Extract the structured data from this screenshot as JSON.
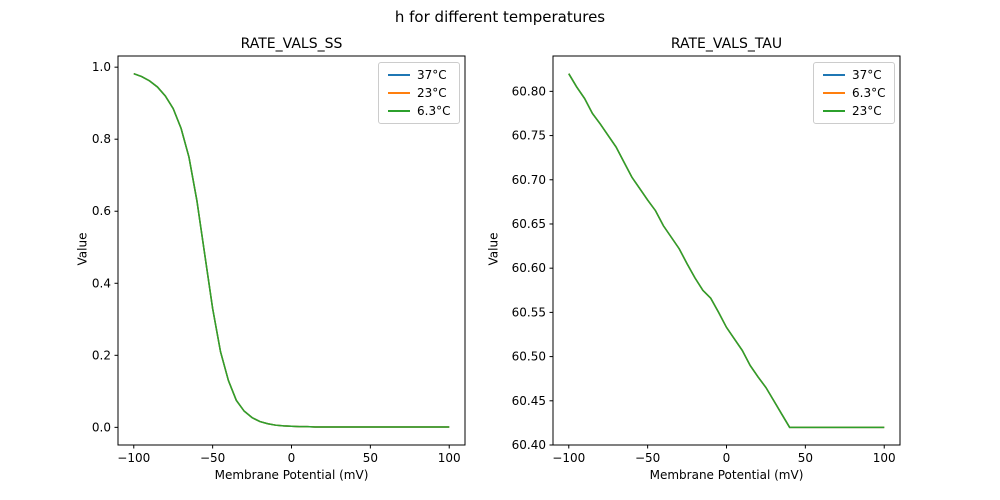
{
  "figure": {
    "title": "h for different temperatures",
    "background": "#ffffff"
  },
  "chart_data": [
    {
      "type": "line",
      "title": "RATE_VALS_SS",
      "xlabel": "Membrane Potential (mV)",
      "ylabel": "Value",
      "xlim": [
        -110,
        110
      ],
      "ylim": [
        -0.049,
        1.031
      ],
      "xticks": [
        -100,
        -50,
        0,
        50,
        100
      ],
      "xtick_labels": [
        "−100",
        "−50",
        "0",
        "50",
        "100"
      ],
      "yticks": [
        0.0,
        0.2,
        0.4,
        0.6,
        0.8,
        1.0
      ],
      "ytick_labels": [
        "0.0",
        "0.2",
        "0.4",
        "0.6",
        "0.8",
        "1.0"
      ],
      "grid": false,
      "legend_position": "upper right",
      "series_overlap": true,
      "x": [
        -100,
        -95,
        -90,
        -85,
        -80,
        -75,
        -70,
        -65,
        -60,
        -55,
        -50,
        -45,
        -40,
        -35,
        -30,
        -25,
        -20,
        -15,
        -10,
        -5,
        0,
        5,
        10,
        15,
        20,
        25,
        30,
        35,
        40,
        45,
        50,
        55,
        60,
        65,
        70,
        75,
        80,
        85,
        90,
        95,
        100
      ],
      "series": [
        {
          "name": "37°C",
          "color": "#1f77b4",
          "values": [
            0.982,
            0.974,
            0.962,
            0.945,
            0.92,
            0.885,
            0.83,
            0.75,
            0.63,
            0.48,
            0.33,
            0.21,
            0.13,
            0.075,
            0.045,
            0.027,
            0.016,
            0.01,
            0.006,
            0.004,
            0.003,
            0.002,
            0.002,
            0.001,
            0.001,
            0.001,
            0.001,
            0.001,
            0.001,
            0.001,
            0.001,
            0.001,
            0.001,
            0.001,
            0.001,
            0.001,
            0.001,
            0.001,
            0.001,
            0.001,
            0.001
          ]
        },
        {
          "name": "23°C",
          "color": "#ff7f0e",
          "values": [
            0.982,
            0.974,
            0.962,
            0.945,
            0.92,
            0.885,
            0.83,
            0.75,
            0.63,
            0.48,
            0.33,
            0.21,
            0.13,
            0.075,
            0.045,
            0.027,
            0.016,
            0.01,
            0.006,
            0.004,
            0.003,
            0.002,
            0.002,
            0.001,
            0.001,
            0.001,
            0.001,
            0.001,
            0.001,
            0.001,
            0.001,
            0.001,
            0.001,
            0.001,
            0.001,
            0.001,
            0.001,
            0.001,
            0.001,
            0.001,
            0.001
          ]
        },
        {
          "name": "6.3°C",
          "color": "#2ca02c",
          "values": [
            0.982,
            0.974,
            0.962,
            0.945,
            0.92,
            0.885,
            0.83,
            0.75,
            0.63,
            0.48,
            0.33,
            0.21,
            0.13,
            0.075,
            0.045,
            0.027,
            0.016,
            0.01,
            0.006,
            0.004,
            0.003,
            0.002,
            0.002,
            0.001,
            0.001,
            0.001,
            0.001,
            0.001,
            0.001,
            0.001,
            0.001,
            0.001,
            0.001,
            0.001,
            0.001,
            0.001,
            0.001,
            0.001,
            0.001,
            0.001,
            0.001
          ]
        }
      ]
    },
    {
      "type": "line",
      "title": "RATE_VALS_TAU",
      "xlabel": "Membrane Potential (mV)",
      "ylabel": "Value",
      "xlim": [
        -110,
        110
      ],
      "ylim": [
        60.4,
        60.84
      ],
      "xticks": [
        -100,
        -50,
        0,
        50,
        100
      ],
      "xtick_labels": [
        "−100",
        "−50",
        "0",
        "50",
        "100"
      ],
      "yticks": [
        60.4,
        60.45,
        60.5,
        60.55,
        60.6,
        60.65,
        60.7,
        60.75,
        60.8
      ],
      "ytick_labels": [
        "60.40",
        "60.45",
        "60.50",
        "60.55",
        "60.60",
        "60.65",
        "60.70",
        "60.75",
        "60.80"
      ],
      "grid": false,
      "legend_position": "upper right",
      "series_overlap": true,
      "x": [
        -100,
        -95,
        -90,
        -85,
        -80,
        -75,
        -70,
        -65,
        -60,
        -55,
        -50,
        -45,
        -40,
        -35,
        -30,
        -25,
        -20,
        -15,
        -10,
        -5,
        0,
        5,
        10,
        15,
        20,
        25,
        30,
        35,
        40,
        45,
        50,
        55,
        60,
        65,
        70,
        75,
        80,
        85,
        90,
        95,
        100
      ],
      "series": [
        {
          "name": "37°C",
          "color": "#1f77b4",
          "values": [
            60.82,
            60.805,
            60.792,
            60.775,
            60.763,
            60.75,
            60.737,
            60.72,
            60.703,
            60.69,
            60.677,
            60.665,
            60.648,
            60.635,
            60.622,
            60.605,
            60.589,
            60.575,
            60.566,
            60.55,
            60.533,
            60.52,
            60.507,
            60.49,
            60.477,
            60.465,
            60.45,
            60.435,
            60.42,
            60.42,
            60.42,
            60.42,
            60.42,
            60.42,
            60.42,
            60.42,
            60.42,
            60.42,
            60.42,
            60.42,
            60.42
          ]
        },
        {
          "name": "6.3°C",
          "color": "#ff7f0e",
          "values": [
            60.82,
            60.805,
            60.792,
            60.775,
            60.763,
            60.75,
            60.737,
            60.72,
            60.703,
            60.69,
            60.677,
            60.665,
            60.648,
            60.635,
            60.622,
            60.605,
            60.589,
            60.575,
            60.566,
            60.55,
            60.533,
            60.52,
            60.507,
            60.49,
            60.477,
            60.465,
            60.45,
            60.435,
            60.42,
            60.42,
            60.42,
            60.42,
            60.42,
            60.42,
            60.42,
            60.42,
            60.42,
            60.42,
            60.42,
            60.42,
            60.42
          ]
        },
        {
          "name": "23°C",
          "color": "#2ca02c",
          "values": [
            60.82,
            60.805,
            60.792,
            60.775,
            60.763,
            60.75,
            60.737,
            60.72,
            60.703,
            60.69,
            60.677,
            60.665,
            60.648,
            60.635,
            60.622,
            60.605,
            60.589,
            60.575,
            60.566,
            60.55,
            60.533,
            60.52,
            60.507,
            60.49,
            60.477,
            60.465,
            60.45,
            60.435,
            60.42,
            60.42,
            60.42,
            60.42,
            60.42,
            60.42,
            60.42,
            60.42,
            60.42,
            60.42,
            60.42,
            60.42,
            60.42
          ]
        }
      ]
    }
  ]
}
